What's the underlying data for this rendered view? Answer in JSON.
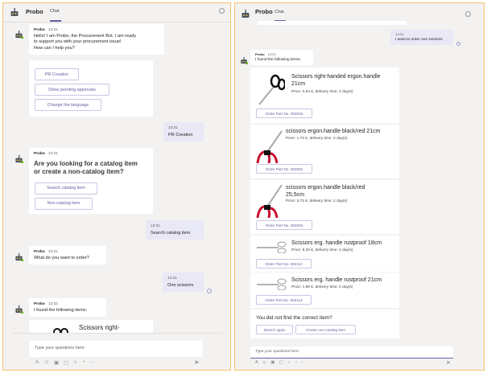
{
  "left": {
    "header": {
      "title": "Probo",
      "tab": "Chat"
    },
    "messages": {
      "m1": {
        "sender": "Probo",
        "time": "13:31",
        "lines": [
          "Hello! I am Probo, the Procurement Bot. I am ready",
          "to support you with your procurement issue!",
          "How can I help you?"
        ]
      },
      "m1_buttons": [
        "PR Creation",
        "Show pending approvals",
        "Change the language"
      ],
      "u1": {
        "time": "13:31",
        "text": "PR Creation"
      },
      "m2": {
        "sender": "Probo",
        "time": "13:31",
        "lines": [
          "Are you looking for a catalog item",
          "or create a non-catalog item?"
        ]
      },
      "m2_buttons": [
        "Search catalog item",
        "Non-catalog item"
      ],
      "u2": {
        "time": "13:31",
        "text": "Search catalog item"
      },
      "m3": {
        "sender": "Probo",
        "time": "13:31",
        "text": "What do you want to order?"
      },
      "u3": {
        "time": "13:31",
        "text": "One scissors"
      },
      "m4": {
        "sender": "Probo",
        "time": "13:32",
        "text": "I found the following items:"
      },
      "m4_partial_item": "Scissors right-"
    },
    "input_placeholder": "Type your questions here"
  },
  "right": {
    "header": {
      "title": "Probo",
      "tab": "Chat"
    },
    "u1": {
      "time": "13:33",
      "text": "I want to order one scissors"
    },
    "m1": {
      "sender": "Probo",
      "time": "13:33",
      "text": "I found the following items:"
    },
    "items": [
      {
        "name_lines": [
          "Scissors right-handed ergon.handle",
          "21cm"
        ],
        "price": "Price: 0.54 €, delivery time: 2 day(s)",
        "button": "Order Part No. 002025"
      },
      {
        "name_lines": [
          "scissors ergon.handle black/red 21cm"
        ],
        "price": "Price: 1.72 €, delivery time: 2 day(s)",
        "button": "Order Part No. 002082"
      },
      {
        "name_lines": [
          "scissors ergon.handle black/red",
          "25,5cm"
        ],
        "price": "Price: 3.72 €, delivery time: 2 day(s)",
        "button": "Order Part No. 002083"
      },
      {
        "name_lines": [
          "Scissors erg. handle rustproof 18cm"
        ],
        "price": "Price: 8.33 €, delivery time: 2 day(s)",
        "button": "Order Part No. 002112"
      },
      {
        "name_lines": [
          "Scissors erg. handle rustproof 21cm"
        ],
        "price": "Price: 1.66 €, delivery time: 2 day(s)",
        "button": "Order Part No. 002113"
      }
    ],
    "footer": {
      "question": "You did not find the correct item?",
      "buttons": [
        "Search again",
        "Create non-catalog item"
      ]
    },
    "input_placeholder": "Type your questions here"
  },
  "colors": {
    "accent": "#6264a7",
    "border": "#f5c36b",
    "bg": "#f3f2f1"
  },
  "toolbar_icons": [
    "format-icon",
    "emoji-icon",
    "gif-icon",
    "sticker-icon",
    "praise-icon",
    "schedule-icon",
    "more-icon",
    "send-icon"
  ]
}
